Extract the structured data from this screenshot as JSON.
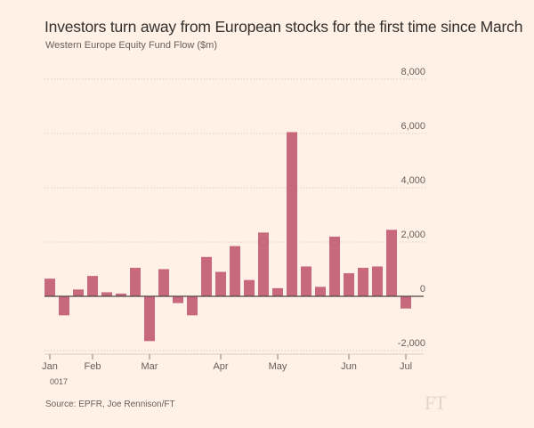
{
  "header": {
    "title": "Investors turn away from European stocks for the first time since March",
    "subtitle": "Western Europe Equity Fund Flow ($m)"
  },
  "footer": {
    "source": "Source: EPFR, Joe Rennison/FT",
    "logo": "FT"
  },
  "colors": {
    "bar": "#c8687c",
    "background": "#fff1e5",
    "grid": "#d9cdc1",
    "baseline": "#4d4845"
  },
  "chart_data": {
    "type": "bar",
    "title": "Investors turn away from European stocks for the first time since March",
    "subtitle": "Western Europe Equity Fund Flow ($m)",
    "ylabel": "",
    "xlabel": "",
    "ylim": [
      -2000,
      8000
    ],
    "yticks": [
      8000,
      6000,
      4000,
      2000,
      0,
      -2000
    ],
    "ytick_labels": [
      "8,000",
      "6,000",
      "4,000",
      "2,000",
      "0",
      "-2,000"
    ],
    "y_axis_position": "right",
    "grid": true,
    "x_labels": [
      {
        "label": "Jan",
        "bar_index": 0
      },
      {
        "label": "Feb",
        "bar_index": 3
      },
      {
        "label": "Mar",
        "bar_index": 7
      },
      {
        "label": "Apr",
        "bar_index": 12
      },
      {
        "label": "May",
        "bar_index": 16
      },
      {
        "label": "Jun",
        "bar_index": 21
      },
      {
        "label": "Jul",
        "bar_index": 25
      }
    ],
    "year_label": "0017",
    "values": [
      650,
      -700,
      250,
      750,
      150,
      100,
      1050,
      -1650,
      1000,
      -250,
      -700,
      1450,
      900,
      1850,
      600,
      2350,
      300,
      6050,
      1100,
      350,
      2200,
      850,
      1050,
      1100,
      2450,
      -450
    ]
  }
}
